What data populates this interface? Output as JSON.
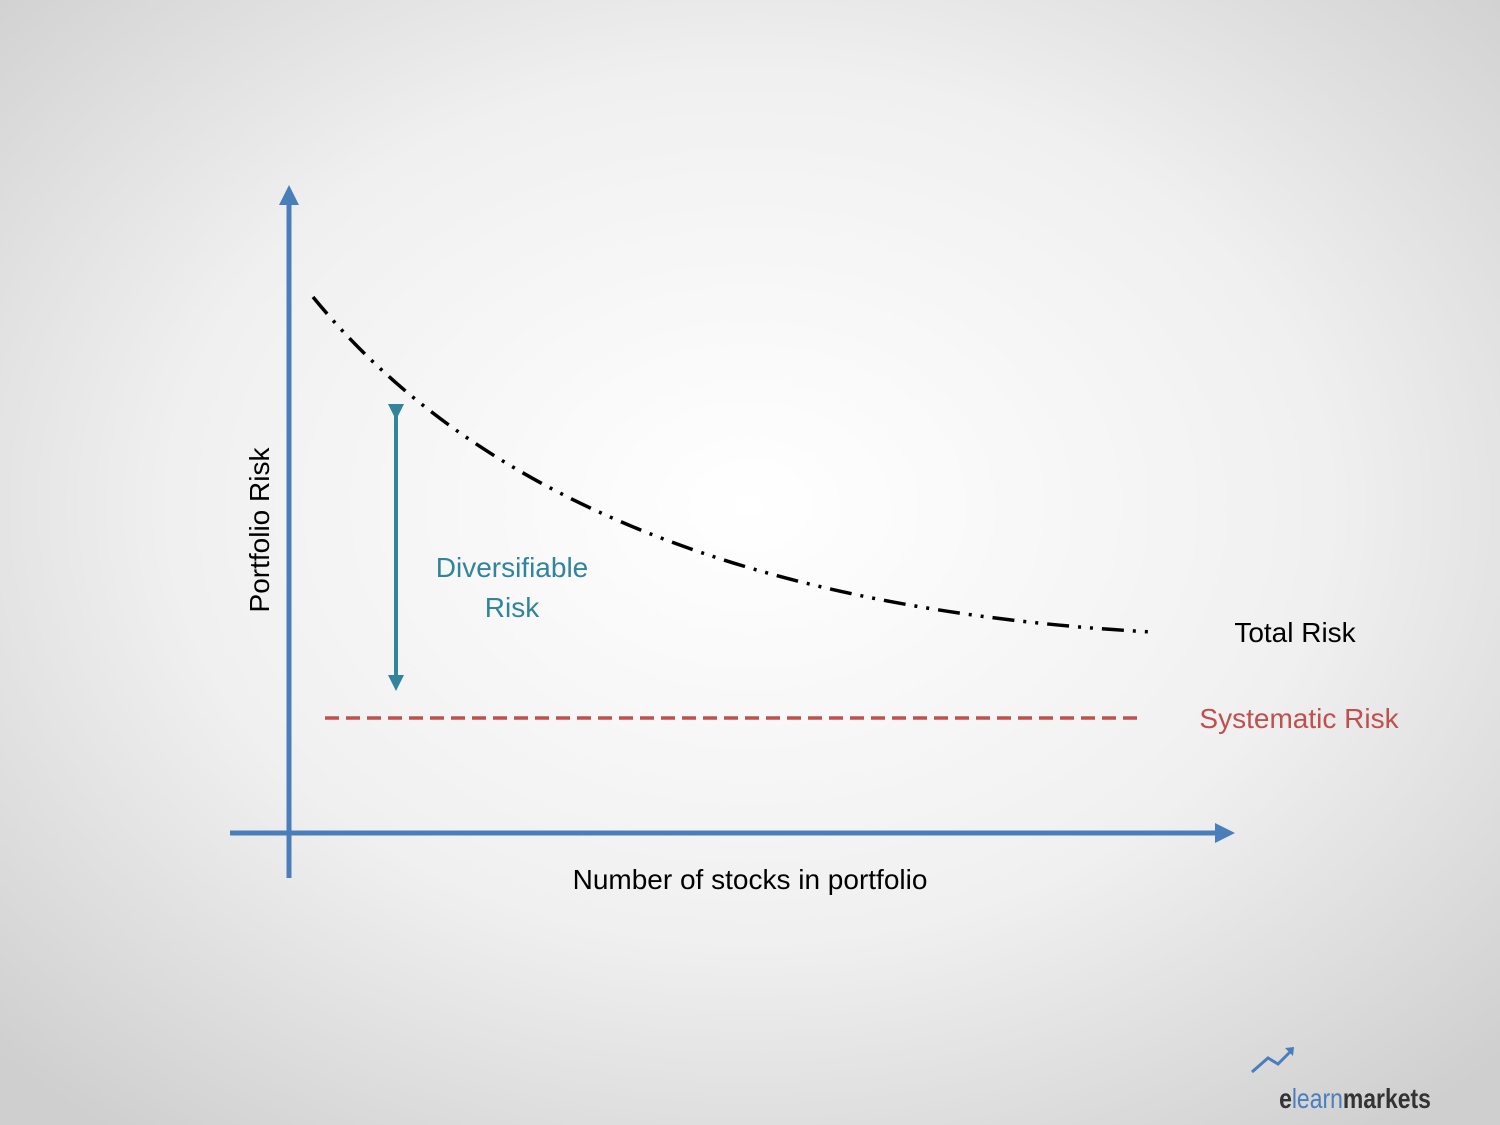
{
  "axes": {
    "y_label": "Portfolio Risk",
    "x_label": "Number of stocks in portfolio"
  },
  "curves": {
    "total_risk": "Total Risk",
    "systematic_risk": "Systematic Risk"
  },
  "annotation": {
    "line1": "Diversifiable",
    "line2": "Risk"
  },
  "logo": {
    "part1": "e",
    "part2": "learn",
    "part3": "markets"
  }
}
